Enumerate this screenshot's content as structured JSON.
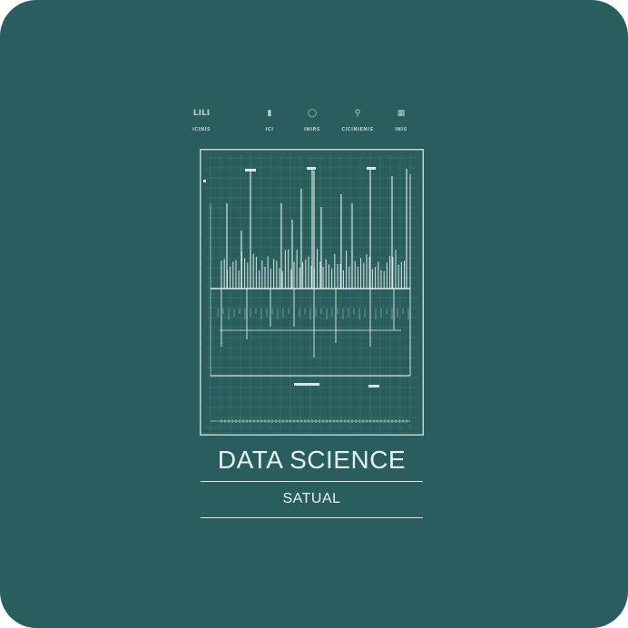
{
  "header_icons": [
    {
      "icon": "chart-icon",
      "glyph": "LILI",
      "label": "ICINIS"
    },
    {
      "icon": "figure-icon",
      "glyph": "▮",
      "label": "ICI"
    },
    {
      "icon": "circle-icon",
      "glyph": "◯",
      "label": "INIRS"
    },
    {
      "icon": "person-icon",
      "glyph": "⚲",
      "label": "CICINIENIS"
    },
    {
      "icon": "grid-icon",
      "glyph": "▦",
      "label": "INIS"
    }
  ],
  "title": "DATA SCIENCE",
  "subtitle": "SATUAL",
  "colors": {
    "background": "#2a5e5e",
    "line": "#d7e8e2"
  }
}
